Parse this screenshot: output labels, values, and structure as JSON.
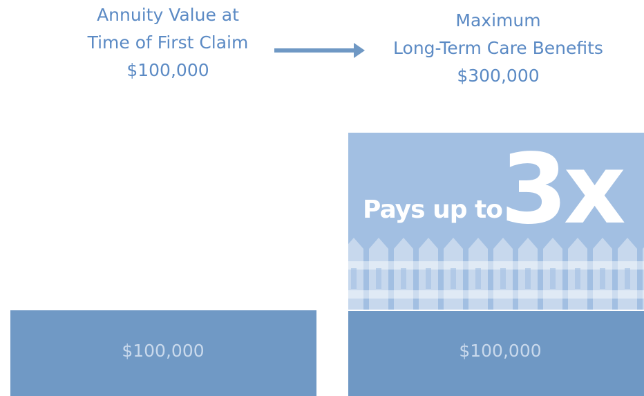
{
  "left_header": {
    "lines": [
      "Annuity Value at",
      "Time of First Claim",
      "$100,000"
    ]
  },
  "right_header": {
    "lines": [
      "Maximum",
      "Long-Term Care Benefits",
      "$300,000"
    ]
  },
  "left_bar": {
    "label": "$100,000"
  },
  "right_bar": {
    "label": "$100,000",
    "tagline": "Pays up to",
    "multiplier": "3x"
  }
}
